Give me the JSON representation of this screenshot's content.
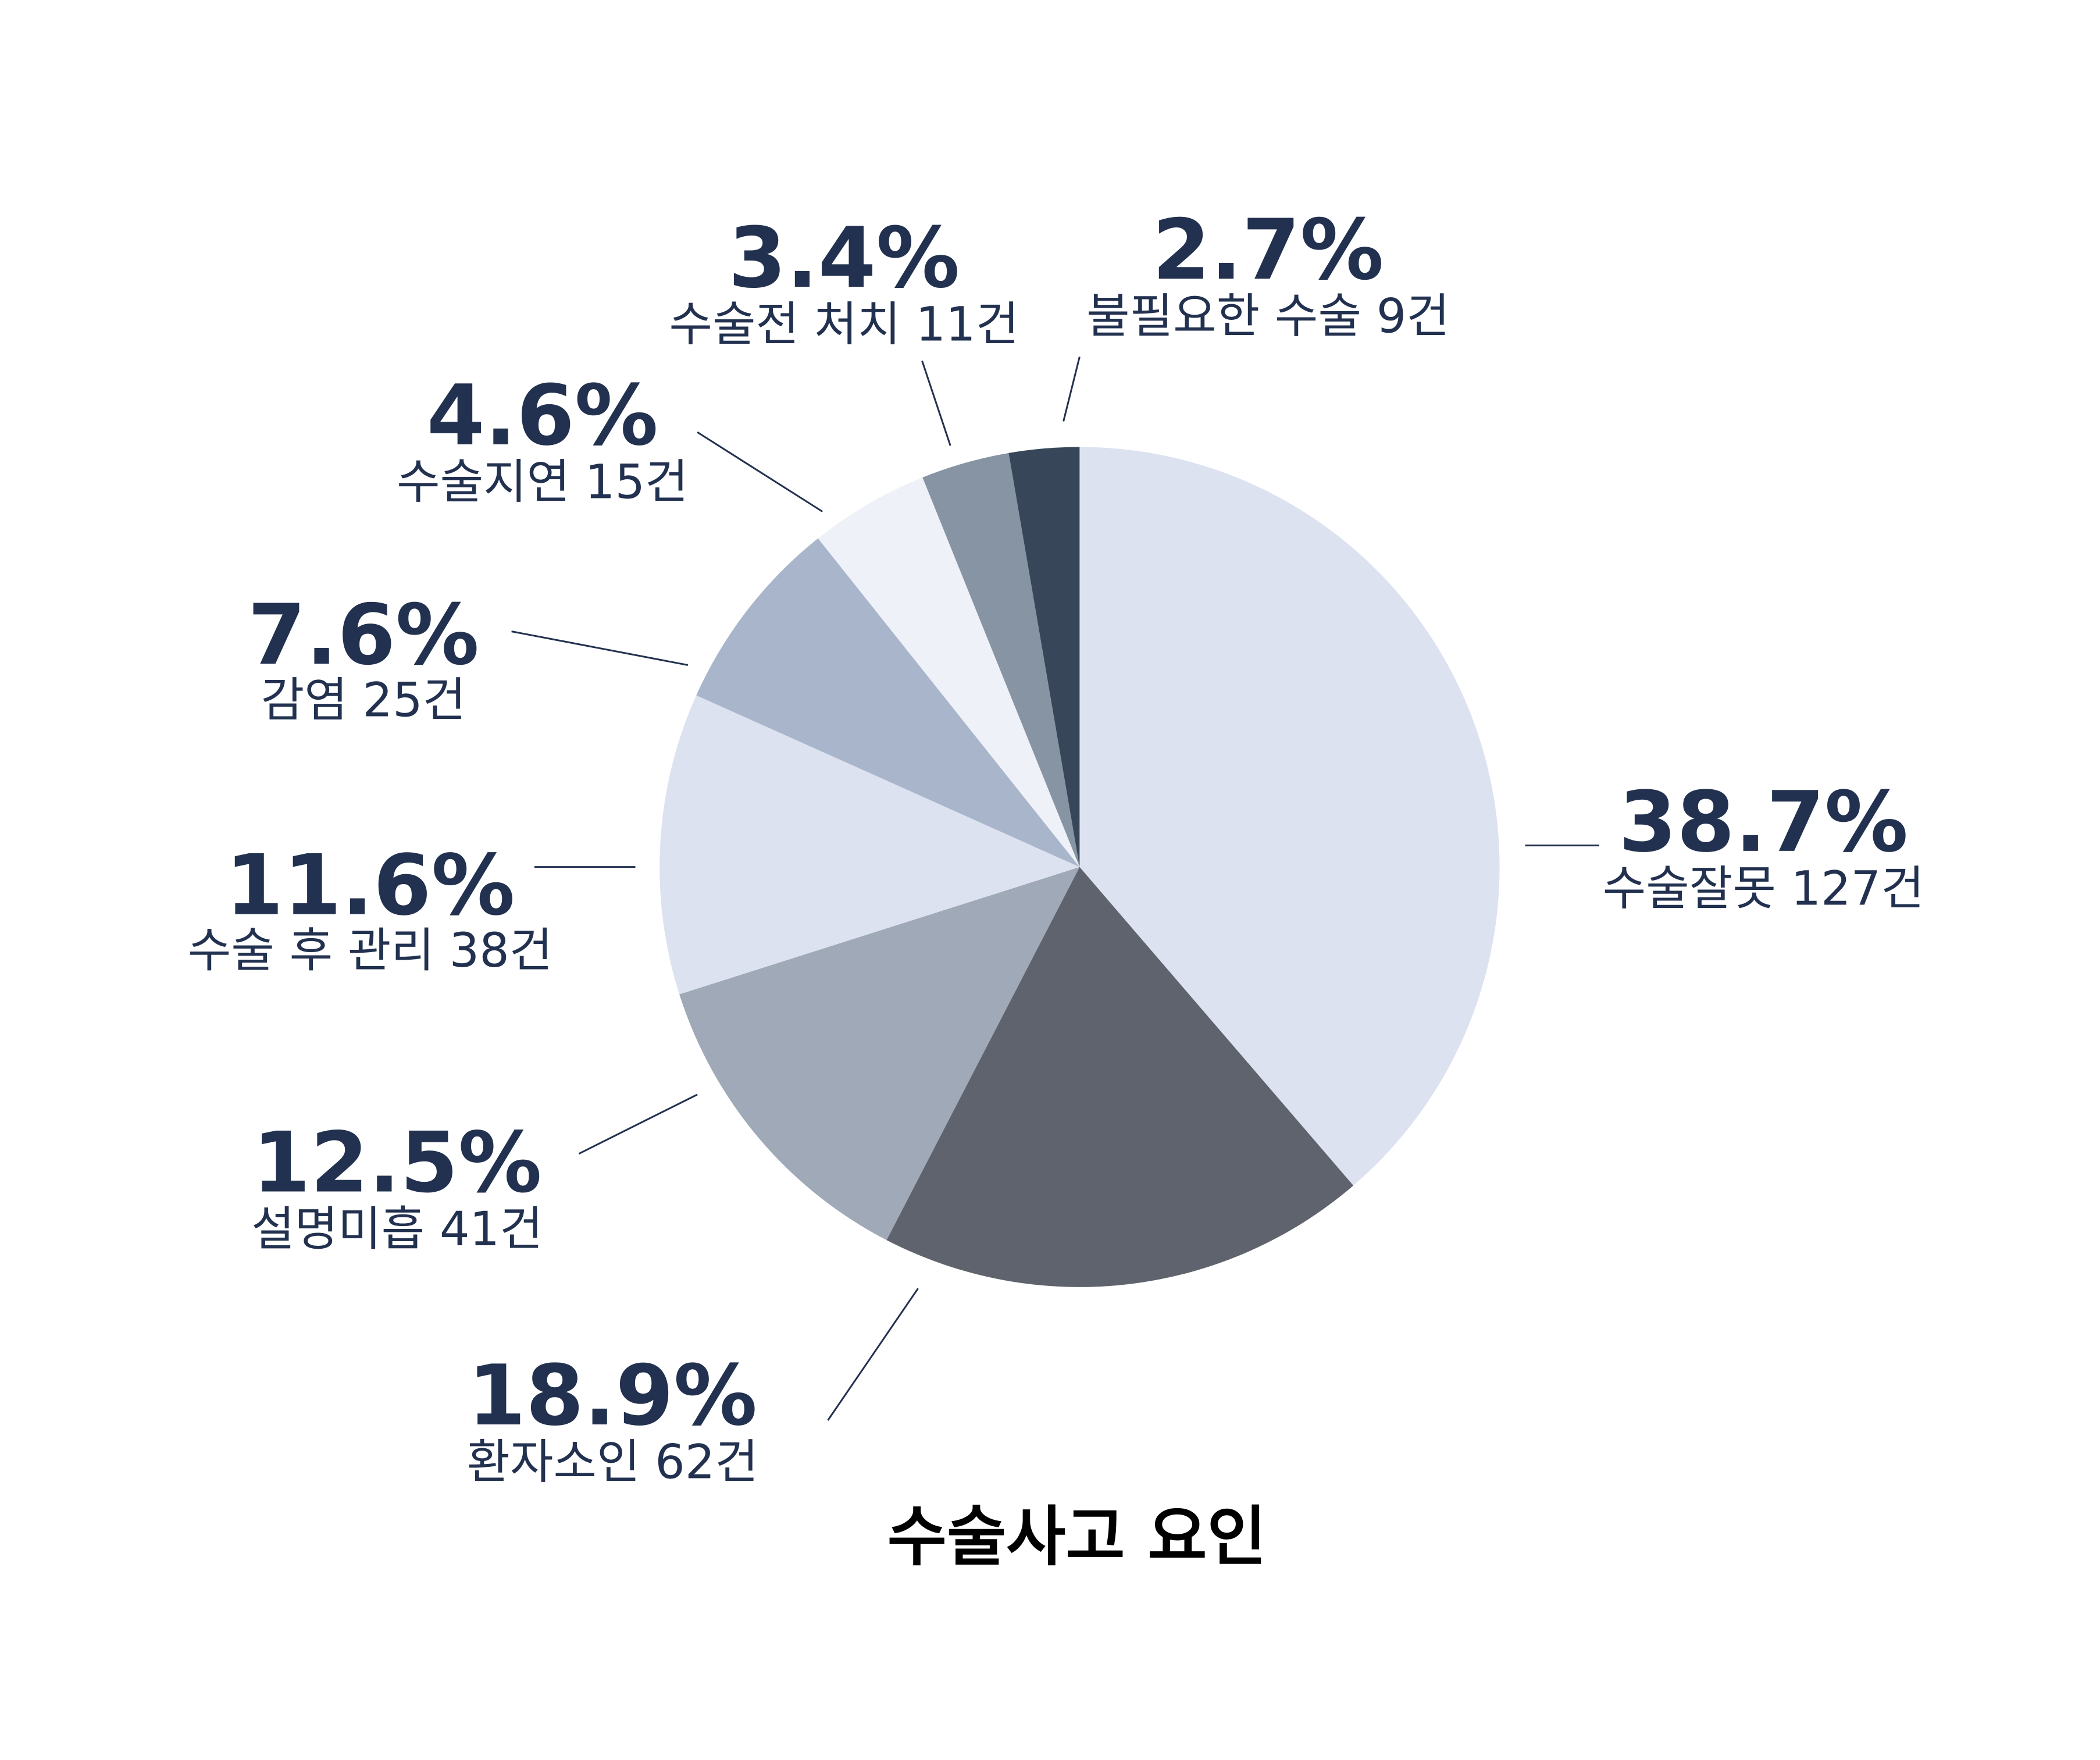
{
  "chart_data": {
    "type": "pie",
    "title": "수술사고 요인",
    "categories": [
      "수술잘못 127건",
      "환자소인 62건",
      "설명미흡 41건",
      "수술 후 관리 38건",
      "감염 25건",
      "수술지연 15건",
      "수술전 처치 11건",
      "불필요한 수술 9건"
    ],
    "values": [
      38.7,
      18.9,
      12.5,
      11.6,
      7.6,
      4.6,
      3.4,
      2.7
    ],
    "value_labels": [
      "38.7%",
      "18.9%",
      "12.5%",
      "11.6%",
      "7.6%",
      "4.6%",
      "3.4%",
      "2.7%"
    ],
    "colors": [
      "#dce2ef",
      "#5f636d",
      "#a0a9b7",
      "#dce2ef",
      "#a9b5cb",
      "#eef1f7",
      "#8794a3",
      "#374759"
    ]
  }
}
